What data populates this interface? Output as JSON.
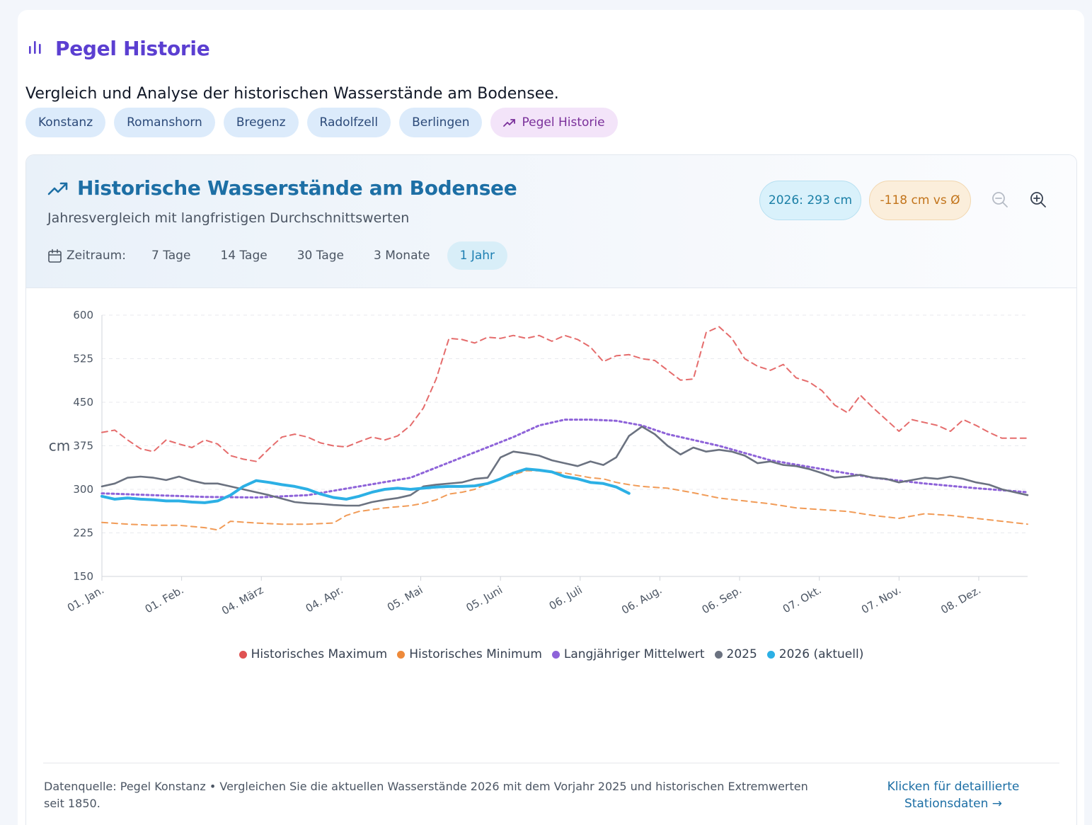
{
  "page": {
    "title": "Pegel Historie",
    "description": "Vergleich und Analyse der historischen Wasserstände am Bodensee."
  },
  "stations": [
    {
      "label": "Konstanz"
    },
    {
      "label": "Romanshorn"
    },
    {
      "label": "Bregenz"
    },
    {
      "label": "Radolfzell"
    },
    {
      "label": "Berlingen"
    },
    {
      "label": "Pegel Historie",
      "active": true
    }
  ],
  "card": {
    "title": "Historische Wasserstände am Bodensee",
    "subtitle": "Jahresvergleich mit langfristigen Durchschnittswerten",
    "range_label": "Zeitraum:",
    "ranges": [
      "7 Tage",
      "14 Tage",
      "30 Tage",
      "3 Monate",
      "1 Jahr"
    ],
    "active_range": "1 Jahr",
    "badge_current": "2026: 293 cm",
    "badge_delta": "-118 cm vs Ø"
  },
  "colors": {
    "max": "#e05252",
    "min": "#ee8a3a",
    "mean": "#8e63d9",
    "y2025": "#6b7280",
    "y2026": "#2cb0e5"
  },
  "chart_data": {
    "type": "line",
    "ylabel": "cm",
    "ylim": [
      150,
      600
    ],
    "yticks": [
      150,
      225,
      300,
      375,
      450,
      525,
      600
    ],
    "xlim": [
      0,
      360
    ],
    "x_tick_labels": [
      "01. Jan.",
      "01. Feb.",
      "04. März",
      "04. Apr.",
      "05. Mai",
      "05. Juni",
      "06. Juli",
      "06. Aug.",
      "06. Sep.",
      "07. Okt.",
      "07. Nov.",
      "08. Dez."
    ],
    "x_ticks": [
      0,
      31,
      62,
      93,
      124,
      155,
      186,
      217,
      248,
      279,
      310,
      341
    ],
    "grid": true,
    "legend_position": "bottom",
    "series": [
      {
        "name": "Historisches Maximum",
        "key": "max",
        "style": "dashed",
        "x": [
          0,
          5,
          10,
          15,
          20,
          25,
          30,
          35,
          40,
          45,
          50,
          55,
          60,
          65,
          70,
          75,
          80,
          85,
          90,
          95,
          100,
          105,
          110,
          115,
          120,
          125,
          130,
          135,
          140,
          145,
          150,
          155,
          160,
          165,
          170,
          175,
          180,
          185,
          190,
          195,
          200,
          205,
          210,
          215,
          220,
          225,
          230,
          235,
          240,
          245,
          250,
          255,
          260,
          265,
          270,
          275,
          280,
          285,
          290,
          295,
          300,
          305,
          310,
          315,
          320,
          325,
          330,
          335,
          340,
          345,
          350,
          355,
          360
        ],
        "y": [
          398,
          402,
          385,
          370,
          365,
          385,
          378,
          372,
          385,
          378,
          358,
          352,
          348,
          370,
          390,
          395,
          390,
          380,
          375,
          373,
          382,
          390,
          385,
          392,
          410,
          440,
          490,
          560,
          558,
          552,
          562,
          560,
          565,
          560,
          565,
          555,
          565,
          558,
          545,
          520,
          530,
          532,
          525,
          522,
          505,
          488,
          490,
          570,
          580,
          560,
          525,
          512,
          505,
          515,
          492,
          485,
          470,
          445,
          432,
          462,
          440,
          420,
          400,
          420,
          415,
          410,
          400,
          420,
          410,
          398,
          388,
          388,
          388
        ]
      },
      {
        "name": "Historisches Minimum",
        "key": "min",
        "style": "dashed",
        "x": [
          0,
          10,
          20,
          30,
          40,
          45,
          50,
          60,
          70,
          80,
          90,
          95,
          100,
          105,
          110,
          115,
          120,
          125,
          130,
          135,
          140,
          145,
          150,
          155,
          160,
          165,
          170,
          175,
          180,
          185,
          190,
          195,
          200,
          205,
          210,
          220,
          230,
          240,
          250,
          260,
          270,
          280,
          290,
          300,
          310,
          320,
          330,
          340,
          350,
          360
        ],
        "y": [
          243,
          240,
          238,
          238,
          234,
          230,
          245,
          242,
          240,
          240,
          242,
          255,
          262,
          265,
          268,
          270,
          272,
          276,
          282,
          292,
          295,
          300,
          310,
          318,
          325,
          332,
          332,
          330,
          328,
          324,
          320,
          318,
          312,
          308,
          305,
          302,
          294,
          285,
          280,
          275,
          268,
          265,
          262,
          255,
          250,
          258,
          255,
          250,
          245,
          240
        ]
      },
      {
        "name": "Langjähriger Mittelwert",
        "key": "mean",
        "style": "dotted",
        "x": [
          0,
          20,
          40,
          60,
          80,
          100,
          120,
          140,
          160,
          170,
          180,
          190,
          200,
          210,
          220,
          240,
          260,
          280,
          300,
          320,
          340,
          360
        ],
        "y": [
          293,
          290,
          287,
          286,
          290,
          305,
          320,
          355,
          390,
          410,
          420,
          420,
          418,
          410,
          395,
          375,
          350,
          335,
          320,
          310,
          302,
          295
        ]
      },
      {
        "name": "2025",
        "key": "y2025",
        "style": "solid",
        "x": [
          0,
          5,
          10,
          15,
          20,
          25,
          30,
          35,
          40,
          45,
          50,
          55,
          60,
          65,
          70,
          75,
          80,
          85,
          90,
          95,
          100,
          105,
          110,
          115,
          120,
          125,
          130,
          135,
          140,
          145,
          150,
          155,
          160,
          165,
          170,
          175,
          180,
          185,
          190,
          195,
          200,
          205,
          210,
          215,
          220,
          225,
          230,
          235,
          240,
          245,
          250,
          255,
          260,
          265,
          270,
          275,
          280,
          285,
          290,
          295,
          300,
          305,
          310,
          315,
          320,
          325,
          330,
          335,
          340,
          345,
          350,
          355,
          360
        ],
        "y": [
          305,
          310,
          320,
          322,
          320,
          316,
          322,
          315,
          310,
          310,
          305,
          300,
          295,
          290,
          284,
          278,
          276,
          275,
          273,
          272,
          272,
          278,
          282,
          285,
          290,
          305,
          308,
          310,
          312,
          318,
          320,
          355,
          365,
          362,
          358,
          350,
          345,
          340,
          348,
          342,
          355,
          392,
          408,
          395,
          375,
          360,
          372,
          365,
          368,
          365,
          358,
          345,
          348,
          342,
          340,
          335,
          328,
          320,
          322,
          325,
          320,
          318,
          312,
          316,
          320,
          318,
          322,
          318,
          312,
          308,
          300,
          295,
          290
        ]
      },
      {
        "name": "2026 (aktuell)",
        "key": "y2026",
        "style": "solid-thick",
        "x": [
          0,
          5,
          10,
          15,
          20,
          25,
          30,
          35,
          40,
          45,
          50,
          55,
          60,
          65,
          70,
          75,
          80,
          85,
          90,
          95,
          100,
          105,
          110,
          115,
          120,
          125,
          130,
          135,
          140,
          145,
          150,
          155,
          160,
          165,
          170,
          175,
          180,
          185,
          190,
          195,
          200,
          205
        ],
        "y": [
          288,
          283,
          285,
          283,
          282,
          280,
          280,
          278,
          277,
          280,
          290,
          305,
          315,
          312,
          308,
          305,
          300,
          292,
          286,
          283,
          288,
          295,
          300,
          302,
          300,
          302,
          304,
          305,
          305,
          306,
          310,
          318,
          328,
          335,
          333,
          330,
          322,
          318,
          312,
          310,
          304,
          293
        ]
      }
    ]
  },
  "footer": {
    "note": "Datenquelle: Pegel Konstanz • Vergleichen Sie die aktuellen Wasserstände 2026 mit dem Vorjahr 2025 und historischen Extremwerten seit 1850.",
    "link": "Klicken für detaillierte Stationsdaten →"
  }
}
